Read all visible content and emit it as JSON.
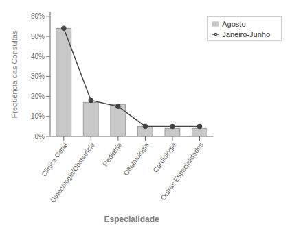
{
  "chart_data": {
    "type": "bar",
    "xlabel": "Especialidade",
    "ylabel": "Freqüência das Consultas",
    "categories": [
      "Clínica Geral",
      "Ginecologia/Obstetrícia",
      "Pediatria",
      "Oftalmologia",
      "Cardiologia",
      "Outras Especialidades"
    ],
    "series": [
      {
        "name": "Agosto",
        "type": "bar",
        "color": "#c8c8c8",
        "values": [
          54,
          17,
          16,
          5,
          4,
          4
        ]
      },
      {
        "name": "Janeiro-Junho",
        "type": "line",
        "color": "#444444",
        "marker": "circle",
        "values": [
          54,
          18,
          15,
          5,
          5,
          5
        ]
      }
    ],
    "ylim": [
      0,
      62
    ],
    "yticks": [
      {
        "value": 0,
        "label": "0%"
      },
      {
        "value": 10,
        "label": "10%"
      },
      {
        "value": 20,
        "label": "20%"
      },
      {
        "value": 30,
        "label": "30%"
      },
      {
        "value": 40,
        "label": "40%"
      },
      {
        "value": 50,
        "label": "50%"
      },
      {
        "value": 60,
        "label": "60%"
      }
    ],
    "grid": false,
    "legend": "upper right"
  }
}
